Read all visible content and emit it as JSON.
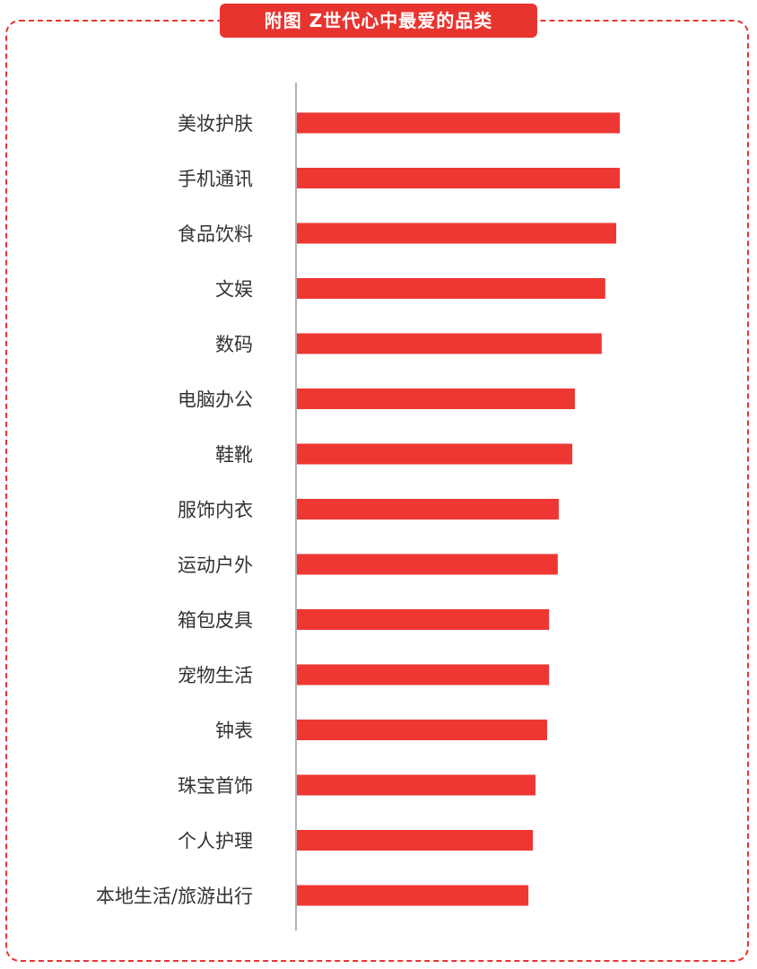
{
  "title": "附图  Z世代心中最爱的品类",
  "colors": {
    "bar": "#ee3733",
    "accent": "#e8342f",
    "axis": "#999999",
    "label": "#333333"
  },
  "chart_data": {
    "type": "bar",
    "orientation": "horizontal",
    "title": "附图  Z世代心中最爱的品类",
    "xlabel": "",
    "ylabel": "",
    "grid": false,
    "legend": "none",
    "xlim": [
      0,
      100
    ],
    "categories": [
      "美妆护肤",
      "手机通讯",
      "食品饮料",
      "文娱",
      "数码",
      "电脑办公",
      "鞋靴",
      "服饰内衣",
      "运动户外",
      "箱包皮具",
      "宠物生活",
      "钟表",
      "珠宝首饰",
      "个人护理",
      "本地生活/旅游出行"
    ],
    "values": [
      100,
      100,
      98.9,
      95.5,
      94.4,
      86.1,
      85.3,
      81.1,
      80.8,
      78.1,
      78.1,
      77.5,
      73.9,
      73.1,
      71.7
    ]
  }
}
